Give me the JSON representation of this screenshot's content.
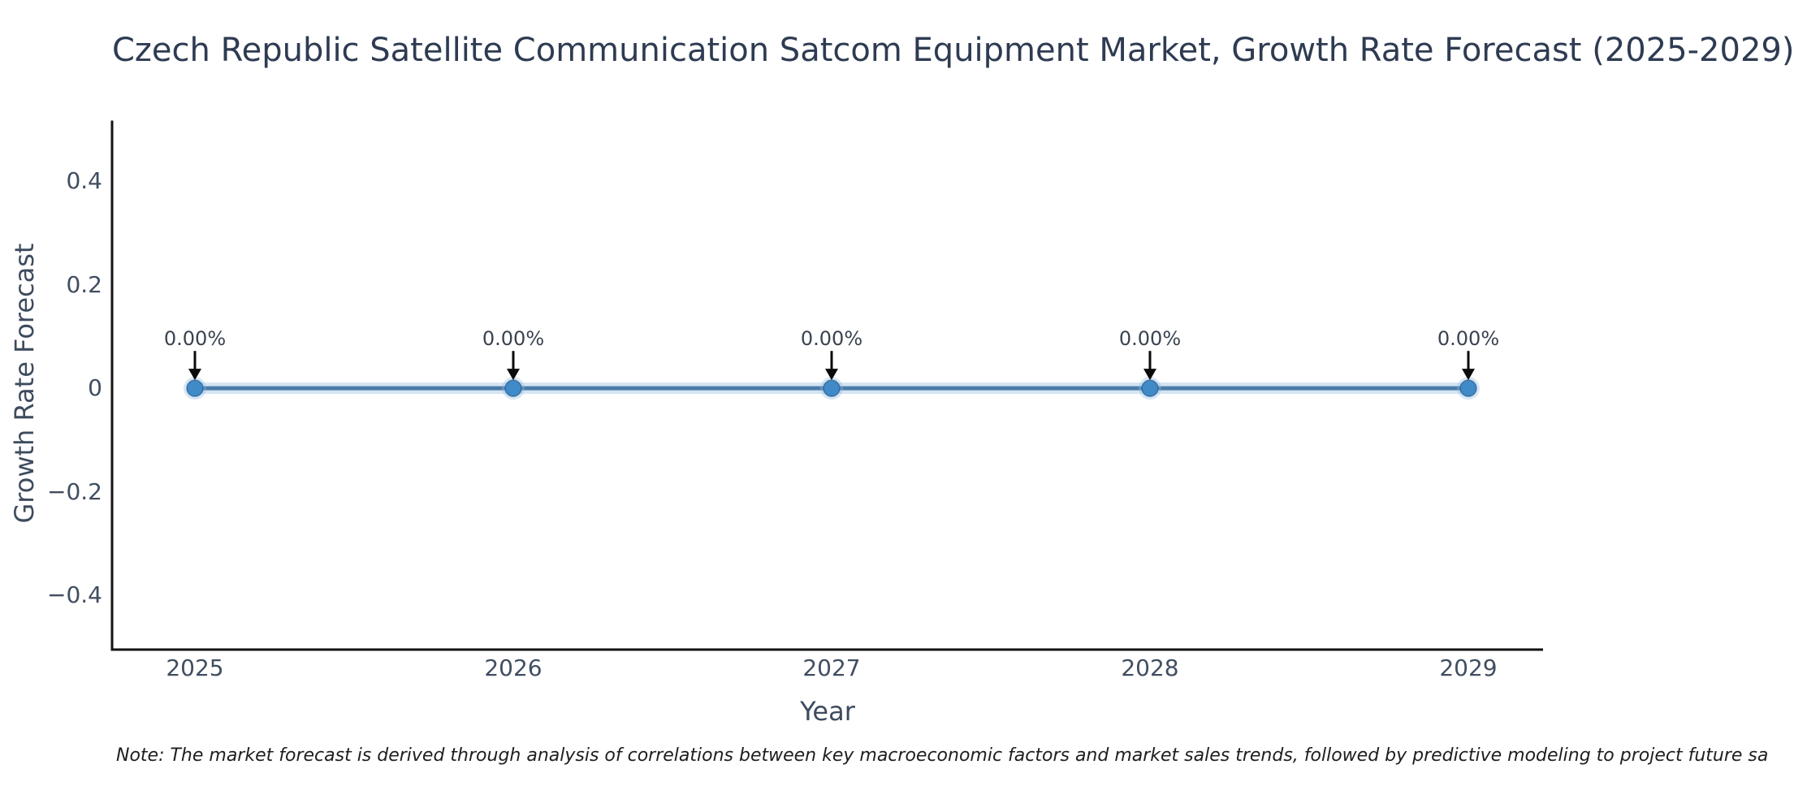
{
  "title": "Czech Republic Satellite Communication Satcom Equipment Market, Growth Rate Forecast (2025-2029)",
  "note": "Note: The market forecast is derived through analysis of correlations between key macroeconomic factors and market sales trends, followed by predictive modeling to project future sa",
  "chart_data": {
    "type": "line",
    "title": "Czech Republic Satellite Communication Satcom Equipment Market, Growth Rate Forecast (2025-2029)",
    "xlabel": "Year",
    "ylabel": "Growth Rate Forecast",
    "categories": [
      "2025",
      "2026",
      "2027",
      "2028",
      "2029"
    ],
    "series": [
      {
        "name": "Growth Rate Forecast",
        "values": [
          0,
          0,
          0,
          0,
          0
        ]
      }
    ],
    "point_labels": [
      "0.00%",
      "0.00%",
      "0.00%",
      "0.00%",
      "0.00%"
    ],
    "yticks": [
      0.4,
      0.2,
      0,
      -0.2,
      -0.4
    ],
    "ytick_labels": [
      "0.4",
      "0.2",
      "0",
      "−0.2",
      "−0.4"
    ],
    "ylim": [
      -0.505,
      0.515
    ],
    "grid": false,
    "legend_position": "none",
    "colors": {
      "line": "#4b7da7",
      "line_halo": "rgba(150,190,225,0.40)",
      "marker": "#3f8ac7",
      "marker_edge": "rgba(25,70,120,0.55)",
      "marker_halo": "rgba(140,185,225,0.35)",
      "arrow": "#0b0b0b",
      "spine": "#121212",
      "title_text": "#2e3b52",
      "tick_text": "#414e60"
    }
  }
}
